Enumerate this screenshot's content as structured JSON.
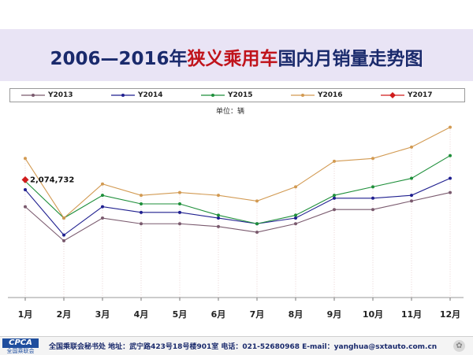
{
  "title": {
    "prefix": "2006—2016年",
    "highlight": "狭义乘用车",
    "suffix": "国内月销量走势图"
  },
  "colors": {
    "title": "#1a2a6c",
    "highlight": "#c0141c",
    "band": "#e9e4f5"
  },
  "unit_label": "单位：辆",
  "chart_data": {
    "type": "line",
    "categories": [
      "1月",
      "2月",
      "3月",
      "4月",
      "5月",
      "6月",
      "7月",
      "8月",
      "9月",
      "10月",
      "11月",
      "12月"
    ],
    "ylim": [
      0,
      3300000
    ],
    "grid": false,
    "legend_position": "top",
    "series": [
      {
        "name": "Y2013",
        "color": "#7a5a6e",
        "marker": "dot",
        "values": [
          1600000,
          1000000,
          1400000,
          1300000,
          1300000,
          1250000,
          1150000,
          1300000,
          1550000,
          1550000,
          1700000,
          1850000
        ]
      },
      {
        "name": "Y2014",
        "color": "#1f1f8f",
        "marker": "dot",
        "values": [
          1900000,
          1100000,
          1600000,
          1500000,
          1500000,
          1400000,
          1300000,
          1400000,
          1750000,
          1750000,
          1800000,
          2100000
        ]
      },
      {
        "name": "Y2015",
        "color": "#1e8f3a",
        "marker": "dot",
        "values": [
          2050000,
          1400000,
          1800000,
          1650000,
          1650000,
          1450000,
          1300000,
          1450000,
          1800000,
          1950000,
          2100000,
          2500000
        ]
      },
      {
        "name": "Y2016",
        "color": "#d29a52",
        "marker": "dot",
        "values": [
          2450000,
          1400000,
          2000000,
          1800000,
          1850000,
          1800000,
          1700000,
          1950000,
          2400000,
          2450000,
          2650000,
          3000000
        ]
      },
      {
        "name": "Y2017",
        "color": "#d01c1c",
        "marker": "diamond",
        "values": [
          2074732,
          null,
          null,
          null,
          null,
          null,
          null,
          null,
          null,
          null,
          null,
          null
        ]
      }
    ],
    "annotations": [
      {
        "series": "Y2017",
        "category": "1月",
        "text": "2,074,732"
      }
    ]
  },
  "footer": {
    "logo_text": "CPCA",
    "logo_sub": "全国乘联会",
    "text": "全国乘联会秘书处  地址：武宁路423号18号楼901室   电话：021-52680968  E-mail：yanghua@sxtauto.com.cn",
    "corner_icon": "chat-bubble-icon"
  }
}
